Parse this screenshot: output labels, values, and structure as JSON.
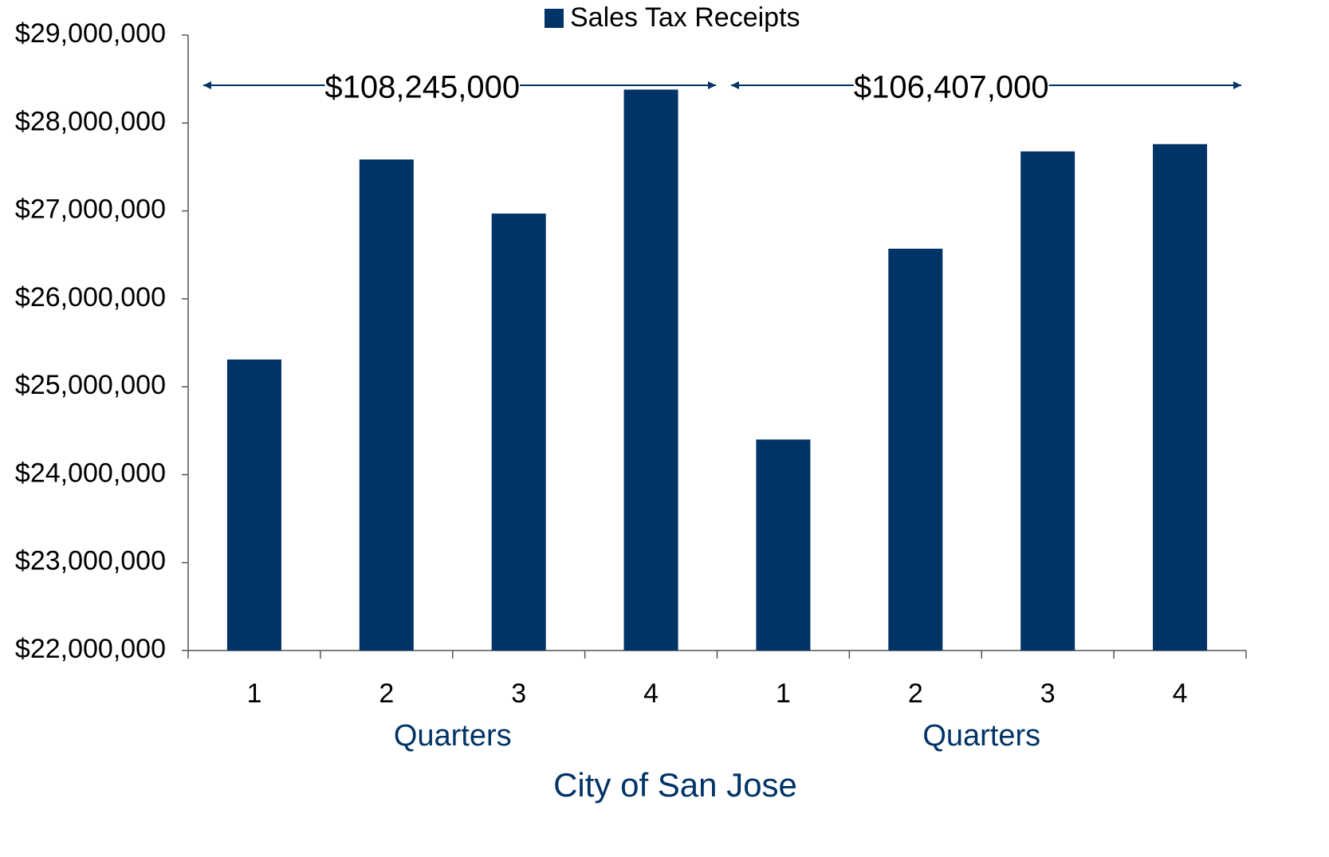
{
  "chart_data": {
    "type": "bar",
    "categories": [
      "1",
      "2",
      "3",
      "4",
      "1",
      "2",
      "3",
      "4"
    ],
    "series": [
      {
        "name": "Sales Tax Receipts",
        "color": "#003366",
        "values": [
          25310000,
          27585000,
          26970000,
          28380000,
          24400000,
          26570000,
          27677000,
          27760000
        ]
      }
    ],
    "group_labels": [
      "Quarters",
      "Quarters"
    ],
    "xlabel": "City of San Jose",
    "annotations": [
      "$108,245,000",
      "$106,407,000"
    ],
    "ylim": [
      22000000,
      29000000
    ],
    "yticks": [
      {
        "value": 22000000,
        "label": "$22,000,000"
      },
      {
        "value": 23000000,
        "label": "$23,000,000"
      },
      {
        "value": 24000000,
        "label": "$24,000,000"
      },
      {
        "value": 25000000,
        "label": "$25,000,000"
      },
      {
        "value": 26000000,
        "label": "$26,000,000"
      },
      {
        "value": 27000000,
        "label": "$27,000,000"
      },
      {
        "value": 28000000,
        "label": "$28,000,000"
      },
      {
        "value": 29000000,
        "label": "$29,000,000"
      }
    ],
    "legend": "top"
  }
}
